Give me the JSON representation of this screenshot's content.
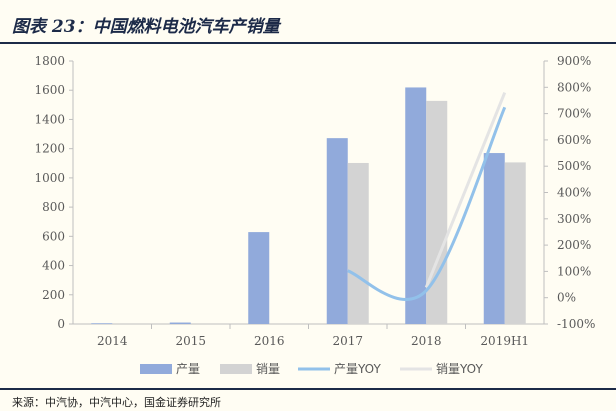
{
  "header": {
    "title": "图表 23：中国燃料电池汽车产销量"
  },
  "footer": {
    "source": "来源：中汽协，中汽中心，国金证券研究所"
  },
  "colors": {
    "production_bar": "#91aadb",
    "sales_bar": "#d3d3d3",
    "production_yoy": "#92c1ea",
    "sales_yoy": "#e4e4e4",
    "axis": "#bfbfbf"
  },
  "chart_data": {
    "type": "bar",
    "title": "",
    "categories": [
      "2014",
      "2015",
      "2016",
      "2017",
      "2018",
      "2019H1"
    ],
    "series": [
      {
        "name": "产量",
        "kind": "bar",
        "axis": "left",
        "values": [
          5,
          10,
          629,
          1272,
          1619,
          1170
        ]
      },
      {
        "name": "销量",
        "kind": "bar",
        "axis": "left",
        "values": [
          null,
          null,
          null,
          1102,
          1527,
          1106
        ]
      },
      {
        "name": "产量YOY",
        "kind": "line",
        "axis": "right",
        "values": [
          null,
          null,
          null,
          1.02,
          0.27,
          7.24
        ]
      },
      {
        "name": "销量YOY",
        "kind": "line",
        "axis": "right",
        "values": [
          null,
          null,
          null,
          null,
          0.39,
          7.8
        ]
      }
    ],
    "y_left": {
      "min": 0,
      "max": 1800,
      "ticks": [
        "0",
        "200",
        "400",
        "600",
        "800",
        "1000",
        "1200",
        "1400",
        "1600",
        "1800"
      ]
    },
    "y_right": {
      "min": -1,
      "max": 9,
      "ticks": [
        "-100%",
        "0%",
        "100%",
        "200%",
        "300%",
        "400%",
        "500%",
        "600%",
        "700%",
        "800%",
        "900%"
      ]
    },
    "grid": false,
    "legend_position": "bottom"
  }
}
